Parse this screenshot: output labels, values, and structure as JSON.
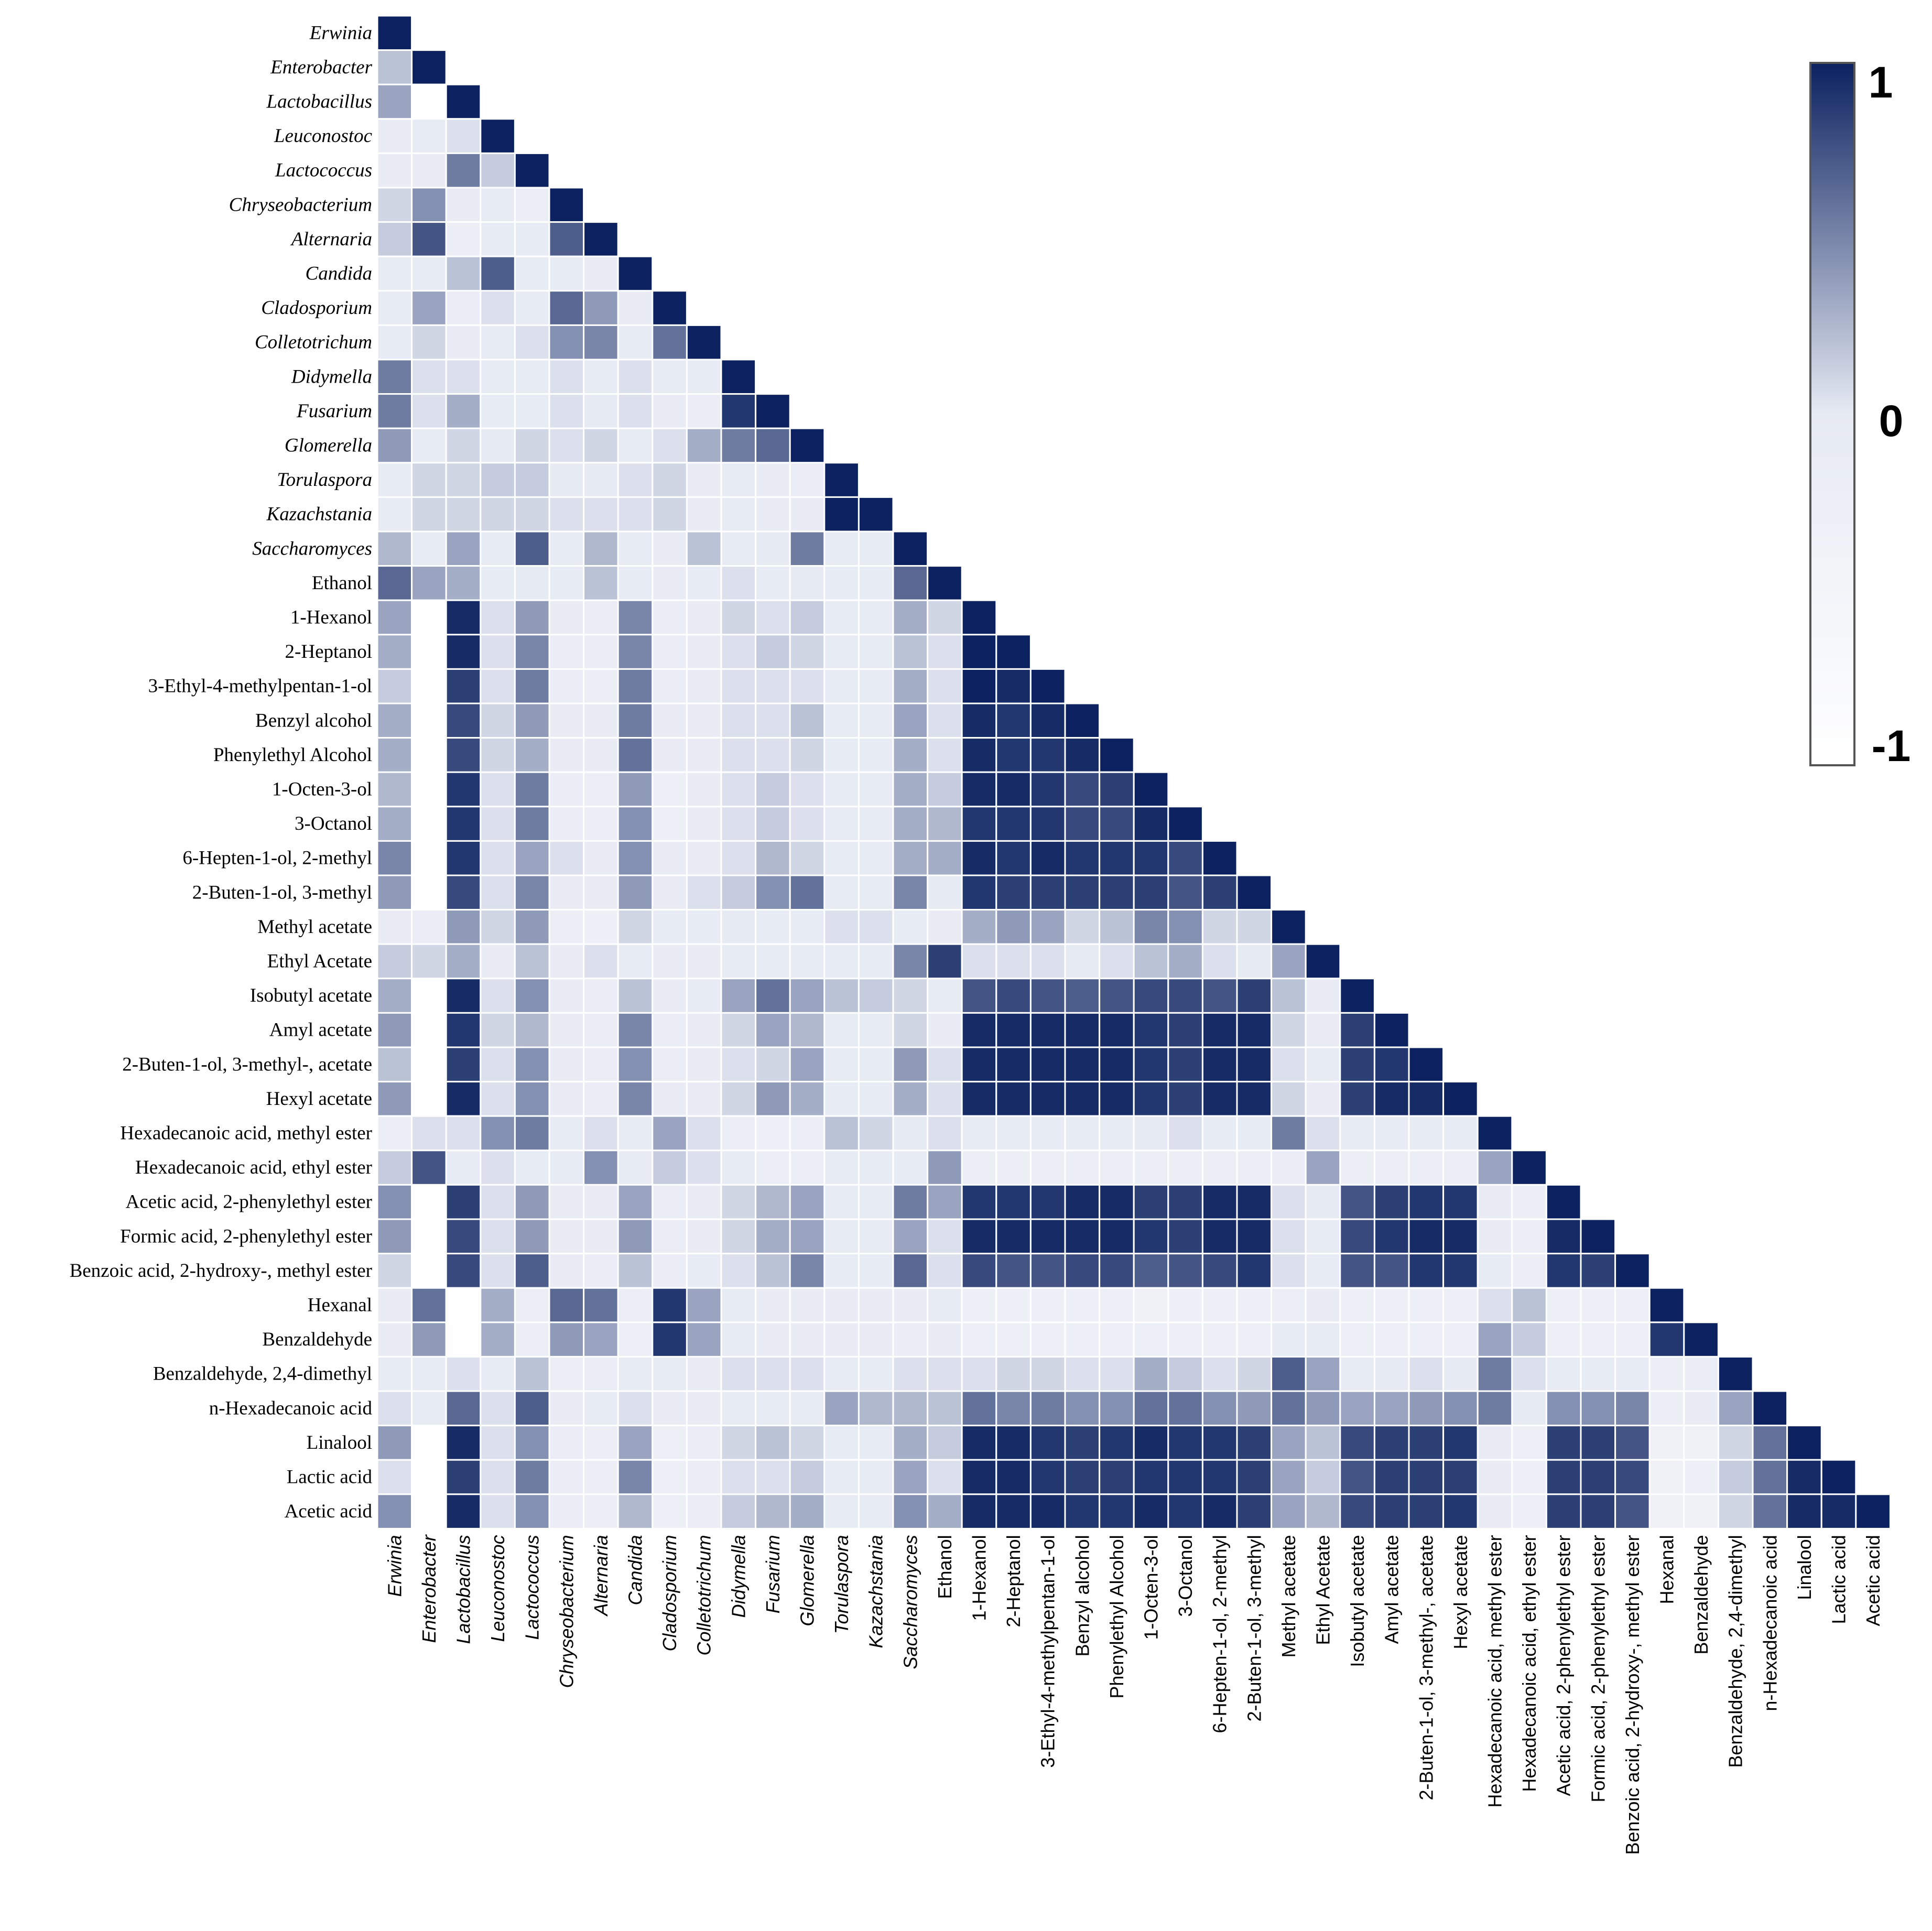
{
  "chart_data": {
    "type": "heatmap",
    "subtype": "lower-triangle correlation matrix",
    "title": "",
    "xlabel": "",
    "ylabel": "",
    "grid": false,
    "legend_position": "right",
    "colors": {
      "low": "#ffffff",
      "mid": "#e6eaf3",
      "high": "#0c2260",
      "cell_border": "#ffffff",
      "legend_border": "#555555"
    },
    "color_scale": {
      "min": -1,
      "max": 1,
      "ticks": [
        "1",
        "0",
        "-1"
      ]
    },
    "labels": [
      {
        "text": "Erwinia",
        "italic": true
      },
      {
        "text": "Enterobacter",
        "italic": true
      },
      {
        "text": "Lactobacillus",
        "italic": true
      },
      {
        "text": "Leuconostoc",
        "italic": true
      },
      {
        "text": "Lactococcus",
        "italic": true
      },
      {
        "text": "Chryseobacterium",
        "italic": true
      },
      {
        "text": "Alternaria",
        "italic": true
      },
      {
        "text": "Candida",
        "italic": true
      },
      {
        "text": "Cladosporium",
        "italic": true
      },
      {
        "text": "Colletotrichum",
        "italic": true
      },
      {
        "text": "Didymella",
        "italic": true
      },
      {
        "text": "Fusarium",
        "italic": true
      },
      {
        "text": "Glomerella",
        "italic": true
      },
      {
        "text": "Torulaspora",
        "italic": true
      },
      {
        "text": "Kazachstania",
        "italic": true
      },
      {
        "text": "Saccharomyces",
        "italic": true
      },
      {
        "text": "Ethanol",
        "italic": false
      },
      {
        "text": "1-Hexanol",
        "italic": false
      },
      {
        "text": "2-Heptanol",
        "italic": false
      },
      {
        "text": "3-Ethyl-4-methylpentan-1-ol",
        "italic": false
      },
      {
        "text": "Benzyl alcohol",
        "italic": false
      },
      {
        "text": "Phenylethyl Alcohol",
        "italic": false
      },
      {
        "text": "1-Octen-3-ol",
        "italic": false
      },
      {
        "text": "3-Octanol",
        "italic": false
      },
      {
        "text": "6-Hepten-1-ol, 2-methyl",
        "italic": false
      },
      {
        "text": "2-Buten-1-ol, 3-methyl",
        "italic": false
      },
      {
        "text": "Methyl acetate",
        "italic": false
      },
      {
        "text": "Ethyl Acetate",
        "italic": false
      },
      {
        "text": "Isobutyl acetate",
        "italic": false
      },
      {
        "text": "Amyl acetate",
        "italic": false
      },
      {
        "text": "2-Buten-1-ol, 3-methyl-, acetate",
        "italic": false
      },
      {
        "text": "Hexyl acetate",
        "italic": false
      },
      {
        "text": "Hexadecanoic acid, methyl ester",
        "italic": false
      },
      {
        "text": "Hexadecanoic acid, ethyl ester",
        "italic": false
      },
      {
        "text": "Acetic acid, 2-phenylethyl ester",
        "italic": false
      },
      {
        "text": "Formic acid, 2-phenylethyl ester",
        "italic": false
      },
      {
        "text": "Benzoic acid, 2-hydroxy-, methyl ester",
        "italic": false
      },
      {
        "text": "Hexanal",
        "italic": false
      },
      {
        "text": "Benzaldehyde",
        "italic": false
      },
      {
        "text": "Benzaldehyde, 2,4-dimethyl",
        "italic": false
      },
      {
        "text": "n-Hexadecanoic acid",
        "italic": false
      },
      {
        "text": "Linalool",
        "italic": false
      },
      {
        "text": "Lactic acid",
        "italic": false
      },
      {
        "text": "Acetic acid",
        "italic": false
      }
    ],
    "matrix": [
      [
        1
      ],
      [
        0.2,
        1
      ],
      [
        0.35,
        -0.95,
        1
      ],
      [
        -0.1,
        -0.05,
        0.05,
        1
      ],
      [
        -0.1,
        -0.1,
        0.55,
        0.15,
        1
      ],
      [
        0.1,
        0.45,
        -0.1,
        -0.05,
        -0.2,
        1
      ],
      [
        0.15,
        0.75,
        -0.2,
        -0.05,
        -0.05,
        0.7,
        1
      ],
      [
        -0.05,
        -0.05,
        0.2,
        0.7,
        -0.05,
        -0.05,
        -0.1,
        1
      ],
      [
        -0.05,
        0.35,
        -0.15,
        0.05,
        -0.05,
        0.65,
        0.4,
        -0.1,
        1
      ],
      [
        -0.05,
        0.1,
        -0.1,
        -0.05,
        0.05,
        0.45,
        0.5,
        -0.05,
        0.6,
        1
      ],
      [
        0.55,
        0.05,
        0.05,
        -0.05,
        -0.05,
        0.05,
        -0.05,
        0.05,
        -0.05,
        -0.05,
        1
      ],
      [
        0.55,
        0.05,
        0.3,
        -0.05,
        -0.05,
        0.05,
        0,
        0.05,
        -0.1,
        -0.15,
        0.9,
        1
      ],
      [
        0.4,
        -0.05,
        0.1,
        0,
        0.1,
        0.05,
        0.1,
        -0.05,
        0.05,
        0.3,
        0.55,
        0.65,
        1
      ],
      [
        -0.05,
        0.1,
        0.1,
        0.15,
        0.15,
        0,
        0,
        0.05,
        0.1,
        -0.1,
        -0.05,
        -0.1,
        -0.15,
        1
      ],
      [
        -0.05,
        0.1,
        0.1,
        0.1,
        0.1,
        0.05,
        0.05,
        0.05,
        0.1,
        -0.1,
        -0.05,
        -0.1,
        -0.1,
        1,
        1
      ],
      [
        0.25,
        -0.05,
        0.35,
        -0.05,
        0.7,
        -0.05,
        0.25,
        -0.05,
        -0.1,
        0.2,
        -0.05,
        0,
        0.55,
        -0.05,
        -0.05,
        1
      ],
      [
        0.65,
        0.35,
        0.3,
        -0.05,
        0,
        -0.05,
        0.2,
        -0.05,
        -0.1,
        -0.05,
        0.05,
        -0.05,
        0,
        -0.05,
        -0.05,
        0.65,
        1
      ],
      [
        0.35,
        -0.95,
        0.95,
        0.05,
        0.4,
        -0.1,
        -0.15,
        0.5,
        -0.15,
        -0.1,
        0.1,
        0.05,
        0.15,
        -0.05,
        -0.05,
        0.3,
        0.1,
        1
      ],
      [
        0.3,
        -0.95,
        0.95,
        0.05,
        0.5,
        -0.15,
        -0.15,
        0.5,
        -0.15,
        -0.1,
        0.05,
        0.15,
        0.1,
        -0.05,
        -0.05,
        0.2,
        0.05,
        1,
        1
      ],
      [
        0.15,
        -0.95,
        0.85,
        0.05,
        0.55,
        -0.15,
        -0.2,
        0.55,
        -0.15,
        -0.1,
        0.05,
        0.05,
        0.05,
        -0.05,
        -0.05,
        0.3,
        0.05,
        1,
        0.95,
        1
      ],
      [
        0.3,
        -0.95,
        0.8,
        0.1,
        0.4,
        -0.1,
        -0.1,
        0.55,
        -0.1,
        -0.1,
        0.05,
        0.05,
        0.2,
        -0.05,
        -0.05,
        0.35,
        0.05,
        0.95,
        0.9,
        0.95,
        1
      ],
      [
        0.3,
        -0.95,
        0.8,
        0.1,
        0.3,
        -0.1,
        -0.1,
        0.6,
        -0.1,
        -0.1,
        0.05,
        0.05,
        0.1,
        -0.05,
        -0.05,
        0.3,
        0.05,
        0.95,
        0.9,
        0.9,
        0.95,
        1
      ],
      [
        0.25,
        -0.95,
        0.9,
        0.05,
        0.55,
        -0.15,
        -0.2,
        0.4,
        -0.25,
        -0.1,
        0.05,
        0.15,
        0.05,
        -0.05,
        -0.05,
        0.3,
        0.15,
        0.95,
        0.95,
        0.9,
        0.8,
        0.85,
        1
      ],
      [
        0.3,
        -0.95,
        0.9,
        0.05,
        0.55,
        -0.15,
        -0.2,
        0.45,
        -0.25,
        -0.1,
        0.05,
        0.15,
        0.05,
        -0.05,
        -0.05,
        0.3,
        0.25,
        0.9,
        0.9,
        0.9,
        0.8,
        0.8,
        0.95,
        1
      ],
      [
        0.5,
        -0.95,
        0.9,
        0.05,
        0.35,
        0.05,
        -0.1,
        0.45,
        -0.1,
        -0.1,
        0.05,
        0.25,
        0.1,
        -0.05,
        -0.05,
        0.3,
        0.3,
        0.95,
        0.9,
        0.95,
        0.9,
        0.9,
        0.9,
        0.8,
        1
      ],
      [
        0.4,
        -0.95,
        0.8,
        0.05,
        0.5,
        -0.1,
        -0.1,
        0.4,
        -0.1,
        0.05,
        0.15,
        0.45,
        0.6,
        -0.05,
        -0.05,
        0.5,
        0,
        0.9,
        0.85,
        0.85,
        0.85,
        0.85,
        0.85,
        0.75,
        0.85,
        1
      ],
      [
        -0.1,
        -0.15,
        0.4,
        0.1,
        0.4,
        -0.2,
        -0.3,
        0.1,
        -0.05,
        -0.05,
        0,
        -0.05,
        -0.05,
        0.05,
        0.05,
        -0.05,
        -0.1,
        0.3,
        0.4,
        0.35,
        0.1,
        0.2,
        0.5,
        0.45,
        0.1,
        0.1,
        1
      ],
      [
        0.15,
        0.1,
        0.3,
        -0.1,
        0.2,
        -0.1,
        0.05,
        -0.05,
        -0.1,
        -0.1,
        -0.05,
        -0.05,
        -0.05,
        -0.05,
        -0.05,
        0.5,
        0.85,
        0.05,
        0.05,
        0.05,
        0,
        0.05,
        0.2,
        0.3,
        0.05,
        0,
        0.35,
        1
      ],
      [
        0.3,
        -0.95,
        0.95,
        0.05,
        0.45,
        -0.1,
        -0.15,
        0.2,
        -0.1,
        -0.05,
        0.35,
        0.6,
        0.35,
        0.2,
        0.15,
        0.1,
        -0.05,
        0.75,
        0.8,
        0.75,
        0.7,
        0.75,
        0.8,
        0.8,
        0.75,
        0.85,
        0.2,
        -0.1,
        1
      ],
      [
        0.4,
        -0.95,
        0.9,
        0.1,
        0.25,
        -0.1,
        -0.15,
        0.5,
        -0.15,
        -0.1,
        0.1,
        0.35,
        0.25,
        -0.05,
        -0.05,
        0.1,
        -0.1,
        0.95,
        0.95,
        0.95,
        0.95,
        0.95,
        0.9,
        0.85,
        0.95,
        0.95,
        0.1,
        -0.1,
        0.85,
        1
      ],
      [
        0.2,
        -0.95,
        0.85,
        0.05,
        0.45,
        -0.1,
        -0.15,
        0.45,
        -0.15,
        -0.1,
        0.05,
        0.1,
        0.35,
        -0.05,
        -0.05,
        0.4,
        0.05,
        0.95,
        0.95,
        0.95,
        0.95,
        0.95,
        0.9,
        0.85,
        0.95,
        0.95,
        0.05,
        -0.05,
        0.85,
        0.9,
        1
      ],
      [
        0.4,
        -0.95,
        0.95,
        0.05,
        0.45,
        -0.1,
        -0.15,
        0.5,
        -0.1,
        -0.1,
        0.1,
        0.4,
        0.3,
        -0.05,
        -0.05,
        0.3,
        0.05,
        0.95,
        0.95,
        0.95,
        0.95,
        0.95,
        0.9,
        0.85,
        0.95,
        0.95,
        0.1,
        -0.1,
        0.85,
        0.95,
        0.95,
        1
      ],
      [
        -0.2,
        0.05,
        0.05,
        0.45,
        0.55,
        -0.05,
        0.05,
        -0.05,
        0.35,
        0.05,
        -0.2,
        -0.3,
        -0.2,
        0.2,
        0.1,
        0,
        0.05,
        -0.05,
        -0.05,
        -0.05,
        -0.05,
        -0.05,
        0,
        0.05,
        -0.05,
        -0.05,
        0.55,
        0.05,
        -0.05,
        -0.05,
        -0.05,
        -0.05,
        1
      ],
      [
        0.15,
        0.75,
        -0.05,
        0.05,
        -0.05,
        -0.05,
        0.45,
        -0.05,
        0.15,
        0.05,
        -0.05,
        -0.2,
        -0.2,
        -0.05,
        -0.05,
        -0.05,
        0.4,
        -0.2,
        -0.2,
        -0.2,
        -0.2,
        -0.2,
        -0.2,
        -0.2,
        -0.2,
        -0.2,
        -0.15,
        0.35,
        -0.2,
        -0.2,
        -0.2,
        -0.2,
        0.35,
        1
      ],
      [
        0.45,
        -0.95,
        0.85,
        0.05,
        0.4,
        -0.1,
        -0.1,
        0.35,
        -0.15,
        -0.1,
        0.1,
        0.25,
        0.35,
        -0.05,
        -0.05,
        0.55,
        0.35,
        0.9,
        0.9,
        0.9,
        0.95,
        0.95,
        0.85,
        0.85,
        0.95,
        0.95,
        0.05,
        0,
        0.75,
        0.85,
        0.9,
        0.9,
        -0.1,
        -0.2,
        1
      ],
      [
        0.4,
        -0.95,
        0.8,
        0.05,
        0.4,
        -0.1,
        -0.1,
        0.4,
        -0.15,
        -0.1,
        0.1,
        0.3,
        0.35,
        -0.05,
        -0.05,
        0.35,
        0.05,
        0.95,
        0.95,
        0.95,
        0.95,
        0.95,
        0.9,
        0.85,
        0.95,
        0.95,
        0.05,
        -0.05,
        0.8,
        0.9,
        0.95,
        0.95,
        -0.1,
        -0.2,
        0.95,
        1
      ],
      [
        0.1,
        -0.95,
        0.8,
        0.05,
        0.7,
        -0.1,
        -0.15,
        0.2,
        -0.15,
        -0.05,
        0.05,
        0.2,
        0.5,
        -0.05,
        -0.05,
        0.65,
        0.05,
        0.8,
        0.75,
        0.75,
        0.8,
        0.8,
        0.7,
        0.75,
        0.8,
        0.9,
        0.05,
        -0.05,
        0.75,
        0.75,
        0.9,
        0.9,
        -0.05,
        -0.2,
        0.9,
        0.85,
        1
      ],
      [
        -0.1,
        0.6,
        -0.95,
        0.3,
        -0.2,
        0.65,
        0.6,
        -0.2,
        0.9,
        0.35,
        -0.05,
        -0.1,
        -0.1,
        -0.1,
        -0.1,
        -0.1,
        -0.05,
        -0.3,
        -0.3,
        -0.3,
        -0.3,
        -0.25,
        -0.35,
        -0.3,
        -0.3,
        -0.3,
        -0.2,
        -0.1,
        -0.25,
        -0.25,
        -0.25,
        -0.25,
        0.05,
        0.2,
        -0.25,
        -0.25,
        -0.25,
        1
      ],
      [
        -0.1,
        0.4,
        -0.95,
        0.3,
        -0.2,
        0.4,
        0.35,
        -0.25,
        0.9,
        0.35,
        -0.05,
        -0.1,
        -0.1,
        -0.1,
        -0.1,
        -0.15,
        -0.1,
        -0.25,
        -0.25,
        -0.25,
        -0.25,
        -0.25,
        -0.25,
        -0.25,
        -0.25,
        -0.25,
        -0.05,
        -0.05,
        -0.25,
        -0.25,
        -0.25,
        -0.25,
        0.35,
        0.15,
        -0.25,
        -0.25,
        -0.25,
        0.9,
        1
      ],
      [
        -0.05,
        -0.05,
        0.05,
        -0.05,
        0.2,
        -0.2,
        -0.15,
        -0.05,
        -0.05,
        -0.1,
        0.05,
        0.05,
        0.05,
        -0.05,
        -0.05,
        0.05,
        0.05,
        0.05,
        0.1,
        0.1,
        0.05,
        0.05,
        0.3,
        0.15,
        0.05,
        0.1,
        0.7,
        0.35,
        -0.05,
        0,
        0.05,
        0,
        0.55,
        0.05,
        -0.05,
        -0.05,
        -0.05,
        -0.2,
        -0.15,
        1
      ],
      [
        0.05,
        -0.05,
        0.65,
        0.05,
        0.7,
        -0.1,
        -0.05,
        0.05,
        -0.1,
        -0.1,
        -0.05,
        -0.05,
        -0.05,
        0.35,
        0.25,
        0.25,
        0.2,
        0.6,
        0.5,
        0.55,
        0.45,
        0.45,
        0.6,
        0.6,
        0.45,
        0.4,
        0.6,
        0.4,
        0.35,
        0.35,
        0.4,
        0.45,
        0.55,
        0,
        0.45,
        0.45,
        0.5,
        -0.2,
        -0.1,
        0.35,
        1
      ],
      [
        0.4,
        -0.95,
        0.95,
        0.05,
        0.45,
        -0.15,
        -0.2,
        0.35,
        -0.25,
        -0.15,
        0.1,
        0.2,
        0.1,
        -0.05,
        -0.05,
        0.3,
        0.15,
        0.95,
        0.95,
        0.9,
        0.85,
        0.9,
        0.95,
        0.9,
        0.9,
        0.85,
        0.35,
        0.2,
        0.8,
        0.85,
        0.85,
        0.9,
        -0.1,
        -0.25,
        0.85,
        0.85,
        0.75,
        -0.35,
        -0.35,
        0.1,
        0.6,
        1
      ],
      [
        0.05,
        -0.95,
        0.85,
        0.05,
        0.55,
        -0.15,
        -0.2,
        0.5,
        -0.25,
        -0.15,
        0.05,
        0.05,
        0.15,
        -0.05,
        -0.05,
        0.35,
        0.05,
        0.95,
        0.95,
        0.9,
        0.85,
        0.85,
        0.9,
        0.9,
        0.9,
        0.85,
        0.35,
        0.15,
        0.75,
        0.85,
        0.85,
        0.85,
        -0.1,
        -0.25,
        0.85,
        0.85,
        0.8,
        -0.35,
        -0.3,
        0.15,
        0.6,
        0.95,
        1
      ],
      [
        0.45,
        -0.95,
        0.95,
        0.05,
        0.45,
        -0.15,
        -0.2,
        0.25,
        -0.25,
        -0.15,
        0.15,
        0.25,
        0.3,
        -0.05,
        -0.05,
        0.45,
        0.3,
        0.95,
        0.95,
        0.95,
        0.9,
        0.9,
        0.95,
        0.9,
        0.95,
        0.85,
        0.35,
        0.25,
        0.8,
        0.85,
        0.85,
        0.9,
        -0.1,
        -0.25,
        0.85,
        0.85,
        0.75,
        -0.35,
        -0.35,
        0.1,
        0.6,
        0.95,
        0.95,
        1
      ]
    ]
  }
}
